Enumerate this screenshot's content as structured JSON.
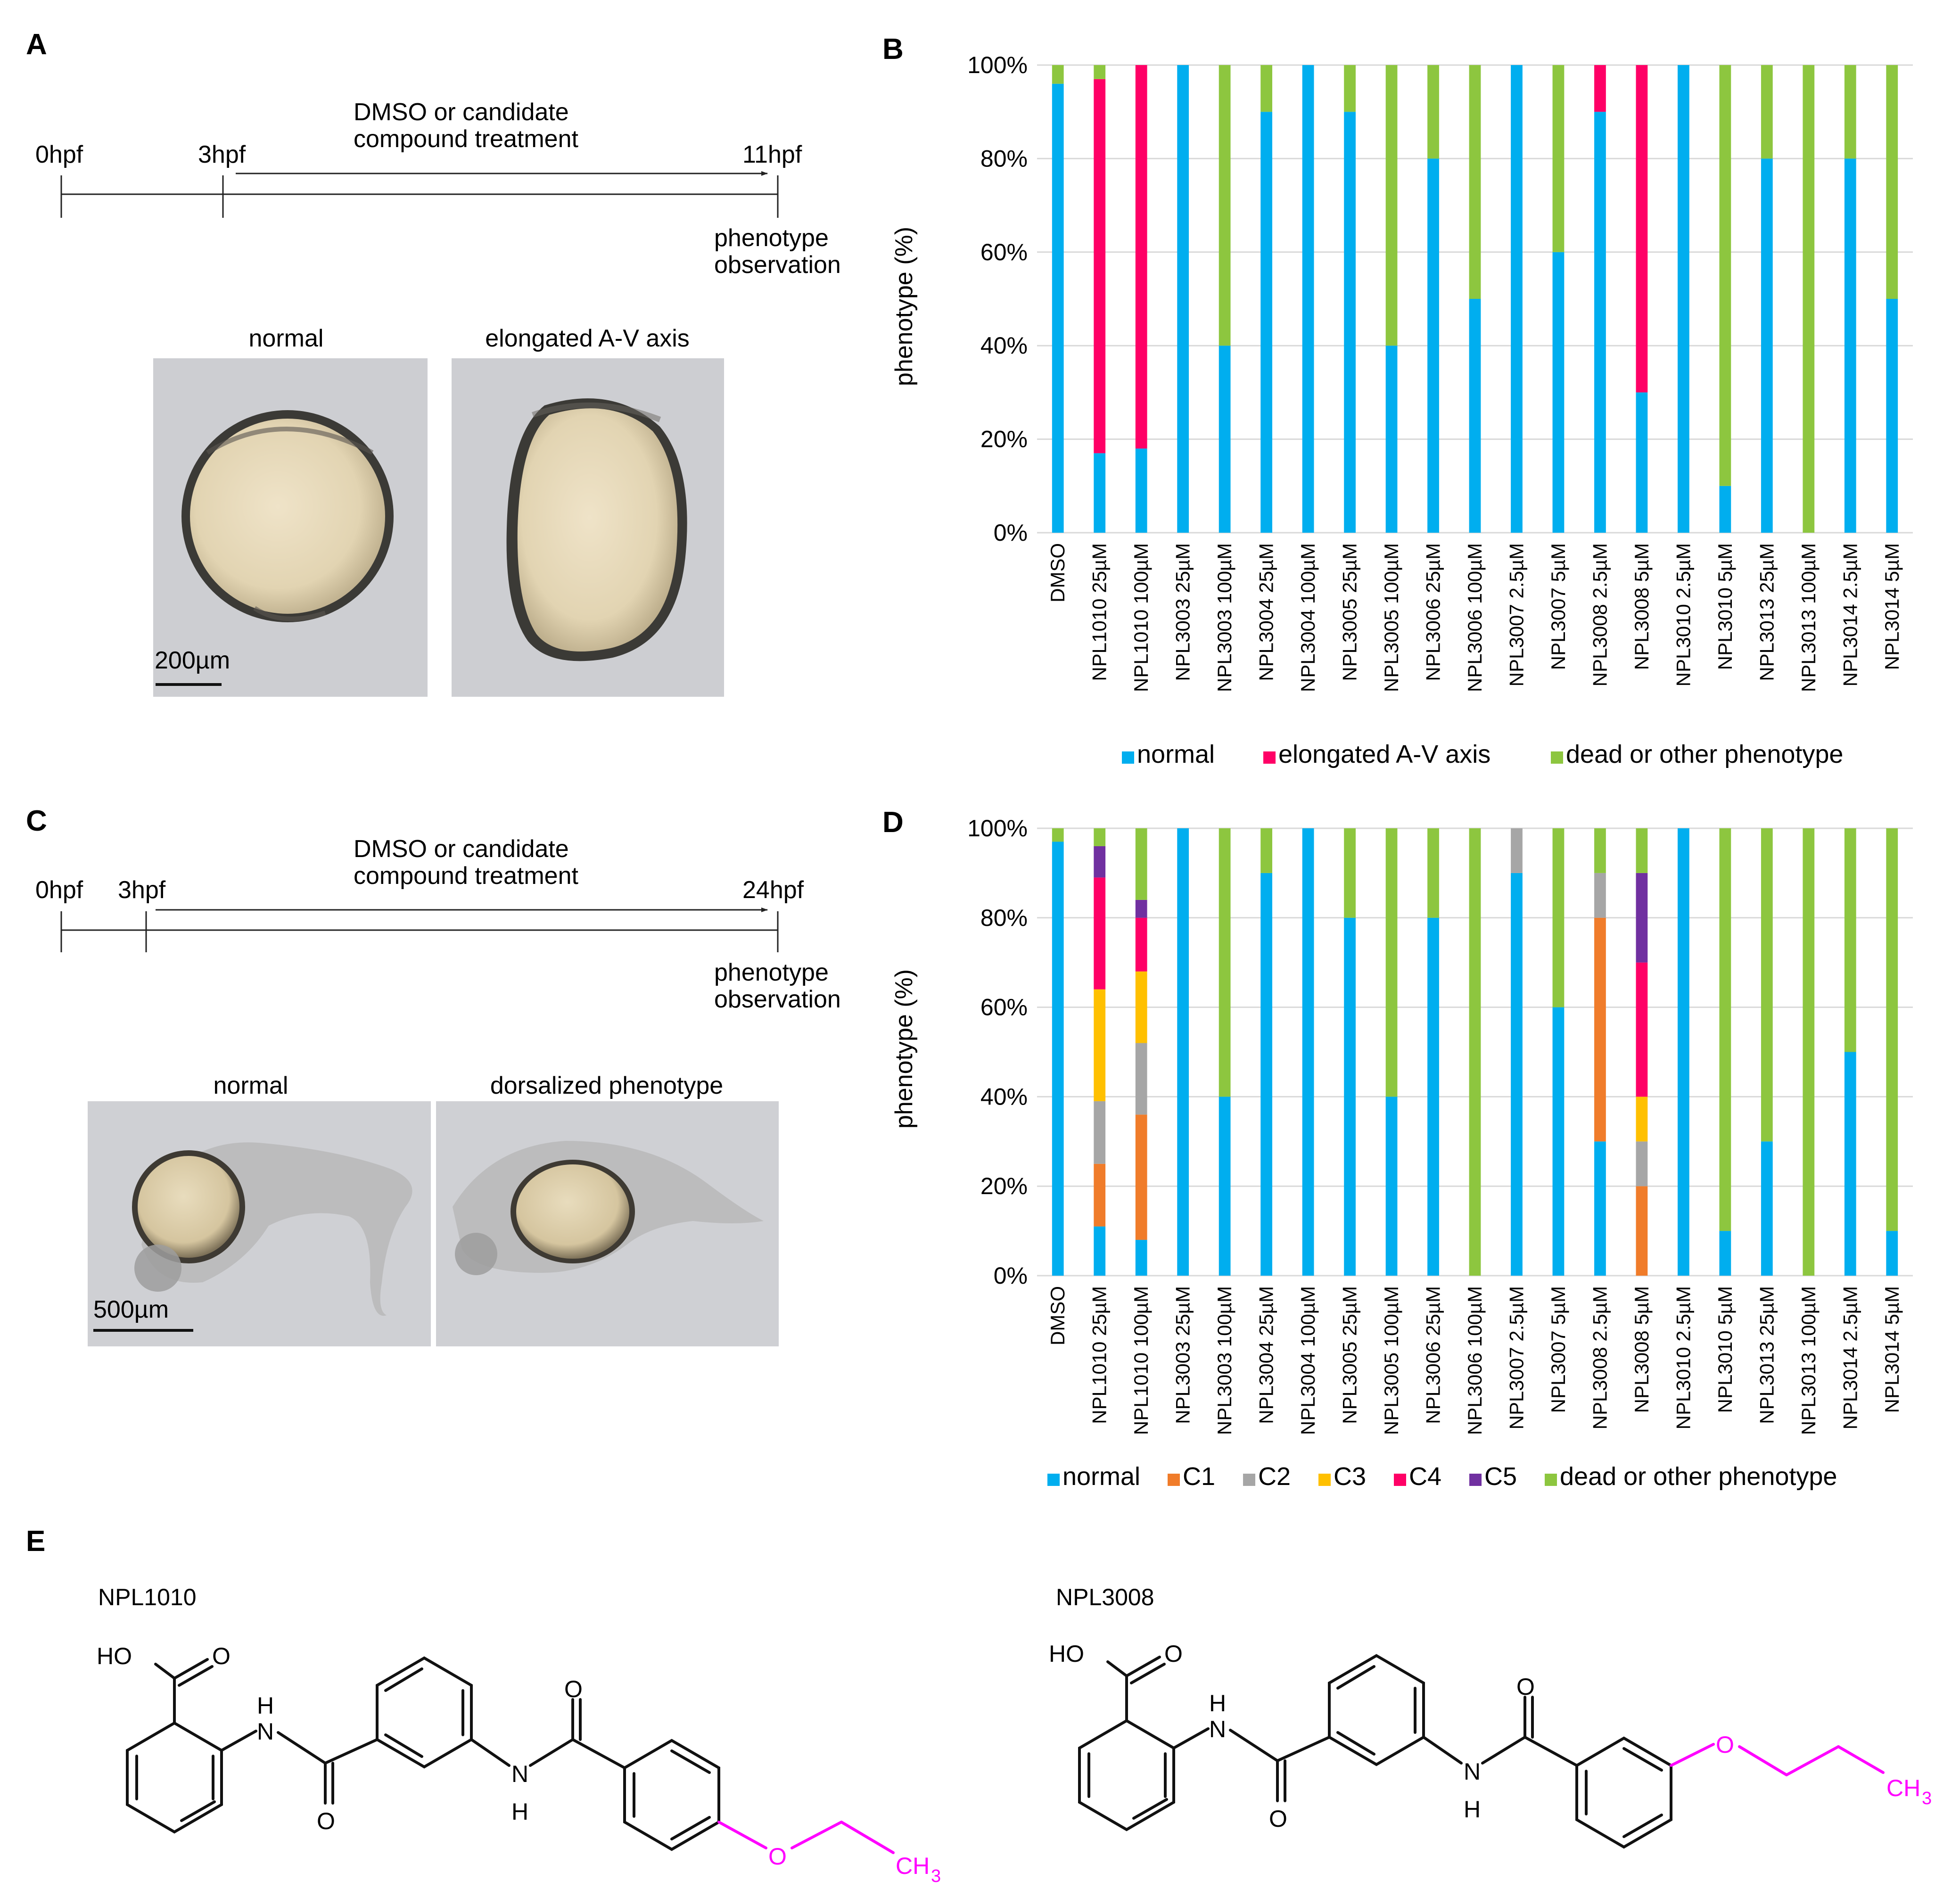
{
  "panels": {
    "A": "A",
    "B": "B",
    "C": "C",
    "D": "D",
    "E": "E"
  },
  "colors": {
    "normal": "#00aeef",
    "elongated": "#ff0066",
    "dead": "#8dc63f",
    "C1": "#f07c2a",
    "C2": "#a6a6a6",
    "C3": "#ffc000",
    "C4": "#ff0066",
    "C5": "#7030a0",
    "magenta": "#ff00ff",
    "grid": "#d9d9d9"
  },
  "panelA": {
    "t0": "0hpf",
    "t1": "3hpf",
    "t2": "11hpf",
    "treatment_line1": "DMSO or candidate",
    "treatment_line2": "compound treatment",
    "obs_line1": "phenotype",
    "obs_line2": "observation",
    "img1_label": "normal",
    "img2_label": "elongated A-V axis",
    "scale": "200µm"
  },
  "panelC": {
    "t0": "0hpf",
    "t1": "3hpf",
    "t2": "24hpf",
    "treatment_line1": "DMSO or candidate",
    "treatment_line2": "compound treatment",
    "obs_line1": "phenotype",
    "obs_line2": "observation",
    "img1_label": "normal",
    "img2_label": "dorsalized phenotype",
    "scale": "500µm"
  },
  "chart_data": [
    {
      "panel": "B",
      "type": "bar",
      "stacked": true,
      "ylabel": "phenotype (%)",
      "ylim": [
        0,
        100
      ],
      "yticks": [
        "0%",
        "20%",
        "40%",
        "60%",
        "80%",
        "100%"
      ],
      "categories": [
        "DMSO",
        "NPL1010 25µM",
        "NPL1010 100µM",
        "NPL3003 25µM",
        "NPL3003 100µM",
        "NPL3004 25µM",
        "NPL3004 100µM",
        "NPL3005 25µM",
        "NPL3005 100µM",
        "NPL3006 25µM",
        "NPL3006 100µM",
        "NPL3007 2.5µM",
        "NPL3007 5µM",
        "NPL3008 2.5µM",
        "NPL3008 5µM",
        "NPL3010 2.5µM",
        "NPL3010 5µM",
        "NPL3013 25µM",
        "NPL3013 100µM",
        "NPL3014 2.5µM",
        "NPL3014 5µM"
      ],
      "series": [
        {
          "name": "normal",
          "color_key": "normal",
          "values": [
            96,
            17,
            18,
            100,
            40,
            90,
            100,
            90,
            40,
            80,
            50,
            100,
            60,
            90,
            30,
            100,
            10,
            80,
            0,
            80,
            50
          ]
        },
        {
          "name": "elongated A-V axis",
          "color_key": "elongated",
          "values": [
            0,
            80,
            82,
            0,
            0,
            0,
            0,
            0,
            0,
            0,
            0,
            0,
            0,
            10,
            70,
            0,
            0,
            0,
            0,
            0,
            0
          ]
        },
        {
          "name": "dead or other phenotype",
          "color_key": "dead",
          "values": [
            4,
            3,
            0,
            0,
            60,
            10,
            0,
            10,
            60,
            20,
            50,
            0,
            40,
            0,
            0,
            0,
            90,
            20,
            100,
            20,
            50
          ]
        }
      ],
      "legend": [
        "normal",
        "elongated A-V axis",
        "dead or other phenotype"
      ]
    },
    {
      "panel": "D",
      "type": "bar",
      "stacked": true,
      "ylabel": "phenotype (%)",
      "ylim": [
        0,
        100
      ],
      "yticks": [
        "0%",
        "20%",
        "40%",
        "60%",
        "80%",
        "100%"
      ],
      "categories": [
        "DMSO",
        "NPL1010 25µM",
        "NPL1010 100µM",
        "NPL3003 25µM",
        "NPL3003 100µM",
        "NPL3004 25µM",
        "NPL3004 100µM",
        "NPL3005 25µM",
        "NPL3005 100µM",
        "NPL3006 25µM",
        "NPL3006 100µM",
        "NPL3007 2.5µM",
        "NPL3007 5µM",
        "NPL3008 2.5µM",
        "NPL3008 5µM",
        "NPL3010 2.5µM",
        "NPL3010 5µM",
        "NPL3013 25µM",
        "NPL3013 100µM",
        "NPL3014 2.5µM",
        "NPL3014 5µM"
      ],
      "series": [
        {
          "name": "normal",
          "color_key": "normal",
          "values": [
            97,
            11,
            8,
            100,
            40,
            90,
            100,
            80,
            40,
            80,
            0,
            90,
            60,
            30,
            0,
            100,
            10,
            30,
            0,
            50,
            10
          ]
        },
        {
          "name": "C1",
          "color_key": "C1",
          "values": [
            0,
            14,
            28,
            0,
            0,
            0,
            0,
            0,
            0,
            0,
            0,
            0,
            0,
            50,
            20,
            0,
            0,
            0,
            0,
            0,
            0
          ]
        },
        {
          "name": "C2",
          "color_key": "C2",
          "values": [
            0,
            14,
            16,
            0,
            0,
            0,
            0,
            0,
            0,
            0,
            0,
            10,
            0,
            10,
            10,
            0,
            0,
            0,
            0,
            0,
            0
          ]
        },
        {
          "name": "C3",
          "color_key": "C3",
          "values": [
            0,
            25,
            16,
            0,
            0,
            0,
            0,
            0,
            0,
            0,
            0,
            0,
            0,
            0,
            10,
            0,
            0,
            0,
            0,
            0,
            0
          ]
        },
        {
          "name": "C4",
          "color_key": "C4",
          "values": [
            0,
            25,
            12,
            0,
            0,
            0,
            0,
            0,
            0,
            0,
            0,
            0,
            0,
            0,
            30,
            0,
            0,
            0,
            0,
            0,
            0
          ]
        },
        {
          "name": "C5",
          "color_key": "C5",
          "values": [
            0,
            7,
            4,
            0,
            0,
            0,
            0,
            0,
            0,
            0,
            0,
            0,
            0,
            0,
            20,
            0,
            0,
            0,
            0,
            0,
            0
          ]
        },
        {
          "name": "dead or other phenotype",
          "color_key": "dead",
          "values": [
            3,
            4,
            16,
            0,
            60,
            10,
            0,
            20,
            60,
            20,
            100,
            0,
            40,
            10,
            10,
            0,
            90,
            70,
            100,
            50,
            90
          ]
        }
      ],
      "legend": [
        "normal",
        "C1",
        "C2",
        "C3",
        "C4",
        "C5",
        "dead or other phenotype"
      ]
    }
  ],
  "panelE": {
    "npl1010": {
      "name": "NPL1010",
      "ho": "HO",
      "o": "O",
      "h": "H",
      "n": "N",
      "ch3": "CH",
      "sub3": "3"
    },
    "npl3008": {
      "name": "NPL3008",
      "ho": "HO",
      "o": "O",
      "h": "H",
      "n": "N",
      "ch3": "CH",
      "sub3": "3"
    }
  }
}
